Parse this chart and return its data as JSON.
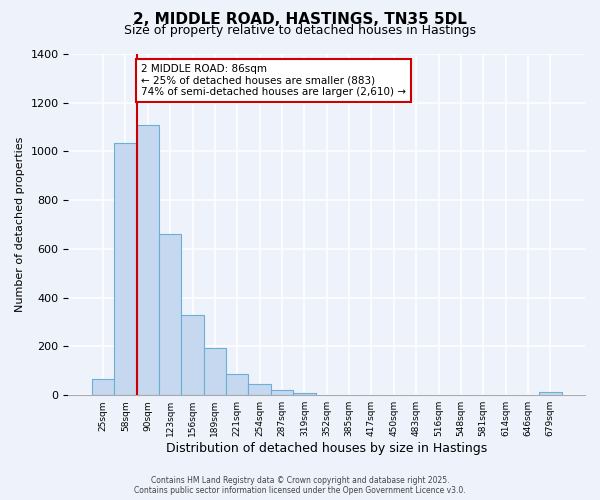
{
  "title": "2, MIDDLE ROAD, HASTINGS, TN35 5DL",
  "subtitle": "Size of property relative to detached houses in Hastings",
  "xlabel": "Distribution of detached houses by size in Hastings",
  "ylabel": "Number of detached properties",
  "bar_values": [
    65,
    1035,
    1110,
    660,
    330,
    195,
    85,
    48,
    20,
    10,
    0,
    0,
    0,
    0,
    0,
    0,
    0,
    0,
    0,
    0,
    15
  ],
  "categories": [
    "25sqm",
    "58sqm",
    "90sqm",
    "123sqm",
    "156sqm",
    "189sqm",
    "221sqm",
    "254sqm",
    "287sqm",
    "319sqm",
    "352sqm",
    "385sqm",
    "417sqm",
    "450sqm",
    "483sqm",
    "516sqm",
    "548sqm",
    "581sqm",
    "614sqm",
    "646sqm",
    "679sqm"
  ],
  "bar_color": "#c5d8f0",
  "bar_edge_color": "#6baed6",
  "vline_color": "#cc0000",
  "annotation_text": "2 MIDDLE ROAD: 86sqm\n← 25% of detached houses are smaller (883)\n74% of semi-detached houses are larger (2,610) →",
  "annotation_box_color": "#ffffff",
  "annotation_box_edge": "#cc0000",
  "ylim": [
    0,
    1400
  ],
  "yticks": [
    0,
    200,
    400,
    600,
    800,
    1000,
    1200,
    1400
  ],
  "background_color": "#eef2fb",
  "grid_color": "#ffffff",
  "footer_line1": "Contains HM Land Registry data © Crown copyright and database right 2025.",
  "footer_line2": "Contains public sector information licensed under the Open Government Licence v3.0.",
  "title_fontsize": 11,
  "subtitle_fontsize": 9,
  "xlabel_fontsize": 9,
  "ylabel_fontsize": 8
}
